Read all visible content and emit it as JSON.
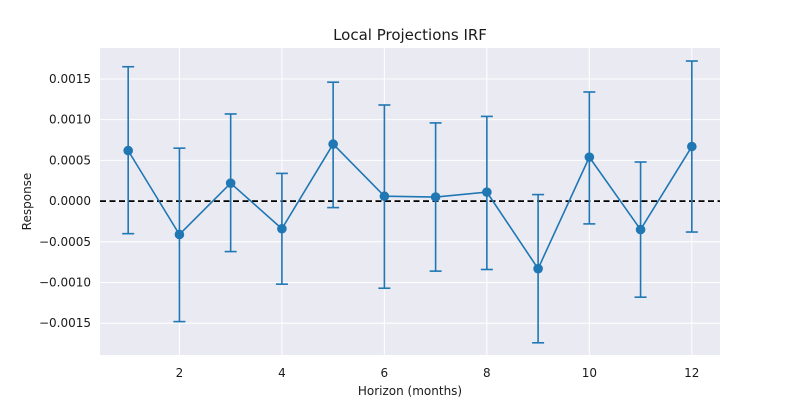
{
  "chart_data": {
    "type": "line",
    "title": "Local Projections IRF",
    "xlabel": "Horizon (months)",
    "ylabel": "Response",
    "xlim": [
      0.45,
      12.55
    ],
    "ylim": [
      -0.00189,
      0.00188
    ],
    "x_ticks": [
      2,
      4,
      6,
      8,
      10,
      12
    ],
    "x_tick_labels": [
      "2",
      "4",
      "6",
      "8",
      "10",
      "12"
    ],
    "y_ticks": [
      -0.0015,
      -0.001,
      -0.0005,
      0.0,
      0.0005,
      0.001,
      0.0015
    ],
    "y_tick_labels": [
      "−0.0015",
      "−0.0010",
      "−0.0005",
      "0.0000",
      "0.0005",
      "0.0010",
      "0.0015"
    ],
    "grid": true,
    "reference_line": {
      "y": 0,
      "style": "dashed",
      "color": "#000000"
    },
    "series": [
      {
        "x": [
          1,
          2,
          3,
          4,
          5,
          6,
          7,
          8,
          9,
          10,
          11,
          12
        ],
        "y": [
          0.00062,
          -0.00041,
          0.00022,
          -0.00034,
          0.0007,
          6e-05,
          5e-05,
          0.00011,
          -0.00083,
          0.00054,
          -0.00035,
          0.00067
        ],
        "lower": [
          -0.0004,
          -0.00148,
          -0.00062,
          -0.00102,
          -8e-05,
          -0.00107,
          -0.00086,
          -0.00084,
          -0.00174,
          -0.00028,
          -0.00118,
          -0.00038
        ],
        "upper": [
          0.00165,
          0.00065,
          0.00107,
          0.00034,
          0.00146,
          0.00118,
          0.00096,
          0.00104,
          8e-05,
          0.00134,
          0.00048,
          0.00172
        ],
        "color": "#1f77b4"
      }
    ],
    "colors": {
      "plot_background": "#eaeaf2",
      "grid": "#ffffff",
      "text": "#1a1a1a"
    }
  }
}
